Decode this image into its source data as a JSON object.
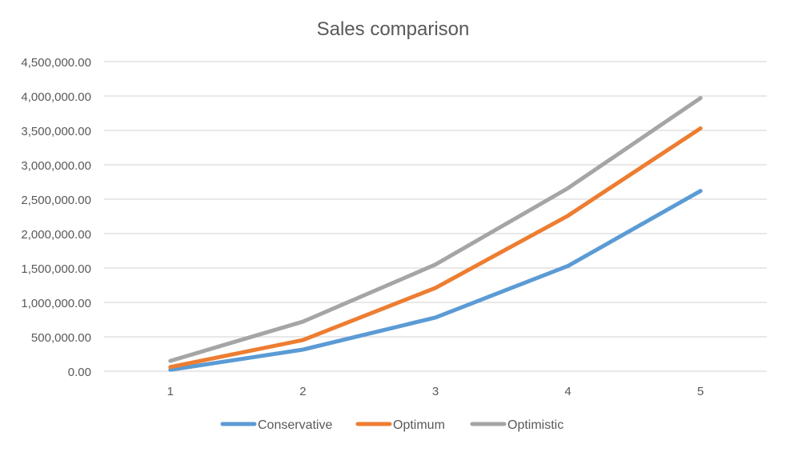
{
  "chart_data": {
    "type": "line",
    "title": "Sales comparison",
    "xlabel": "",
    "ylabel": "",
    "categories": [
      "1",
      "2",
      "3",
      "4",
      "5"
    ],
    "yticks": [
      "0.00",
      "500,000.00",
      "1,000,000.00",
      "1,500,000.00",
      "2,000,000.00",
      "2,500,000.00",
      "3,000,000.00",
      "3,500,000.00",
      "4,000,000.00",
      "4,500,000.00"
    ],
    "ylim": [
      0,
      4500000
    ],
    "grid": true,
    "legend": "bottom",
    "series": [
      {
        "name": "Conservative",
        "color": "#5B9BD5",
        "values": [
          20000,
          314000,
          780000,
          1530000,
          2620000
        ]
      },
      {
        "name": "Optimum",
        "color": "#ED7D31",
        "values": [
          60000,
          453000,
          1210000,
          2260000,
          3530000
        ]
      },
      {
        "name": "Optimistic",
        "color": "#A5A5A5",
        "values": [
          150000,
          720000,
          1550000,
          2660000,
          3970000
        ]
      }
    ]
  }
}
